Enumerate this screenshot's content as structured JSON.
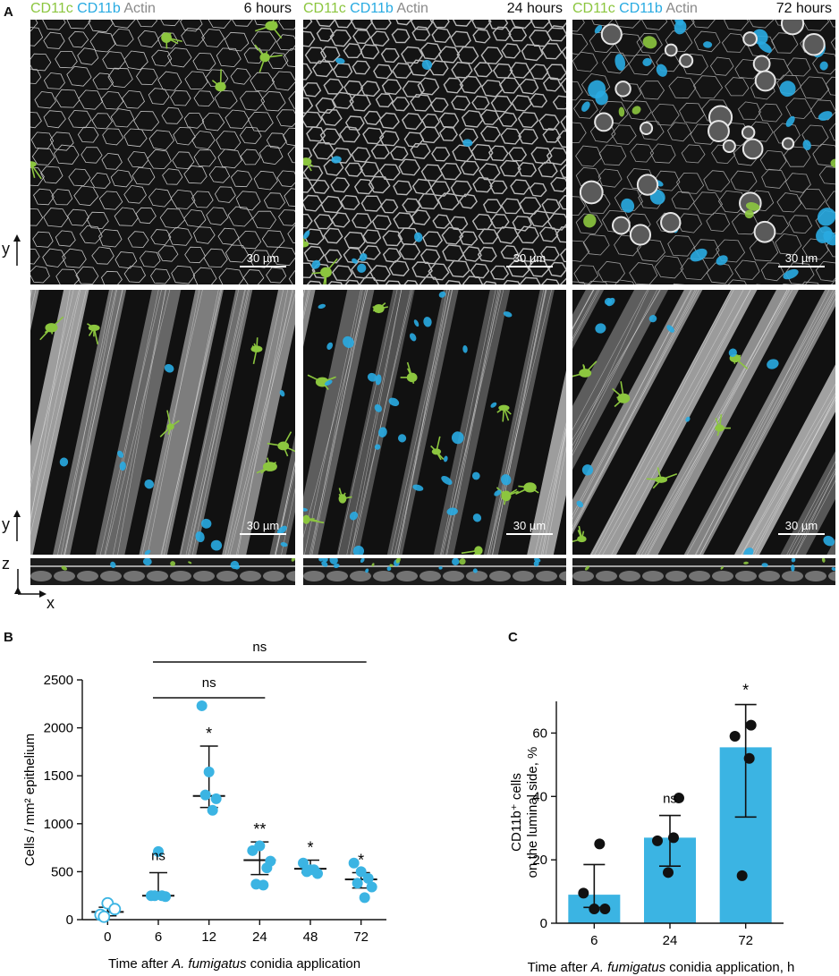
{
  "panel_a": {
    "letter": "A",
    "headers": [
      {
        "c1": "CD11c",
        "c2": "CD11b",
        "c3": "Actin",
        "time": "6 hours"
      },
      {
        "c1": "CD11c",
        "c2": "CD11b",
        "c3": "Actin",
        "time": "24 hours"
      },
      {
        "c1": "CD11c",
        "c2": "CD11b",
        "c3": "Actin",
        "time": "72 hours"
      }
    ],
    "scale_bar": "30 µm",
    "axis_y": "y",
    "axis_z": "z",
    "axis_x": "x",
    "colors": {
      "cd11c": "#8cc63f",
      "cd11b": "#29abe2",
      "actin": "#9a9a9a"
    }
  },
  "panel_b": {
    "letter": "B",
    "ylabel": "Cells / mm² epithelium",
    "xlabel_pre": "Time after ",
    "xlabel_italic": "A. fumigatus",
    "xlabel_post": " conidia application",
    "sig_brackets": [
      {
        "from": "6",
        "to": "72",
        "label": "ns"
      },
      {
        "from": "6",
        "to": "24",
        "label": "ns"
      }
    ],
    "chart_data": {
      "type": "scatter",
      "categories": [
        "0",
        "6",
        "12",
        "24",
        "48",
        "72"
      ],
      "ylim": [
        0,
        2500
      ],
      "yticks": [
        0,
        500,
        1000,
        1500,
        2000,
        2500
      ],
      "points": [
        [
          50,
          170,
          110,
          30
        ],
        [
          250,
          710,
          240,
          250,
          250
        ],
        [
          2230,
          1540,
          1260,
          1300,
          1140
        ],
        [
          720,
          770,
          540,
          370,
          360,
          610
        ],
        [
          590,
          520,
          480,
          500,
          520
        ],
        [
          590,
          500,
          430,
          380,
          230,
          340
        ]
      ],
      "median": [
        80,
        250,
        1290,
        620,
        530,
        420
      ],
      "upper": [
        130,
        490,
        1810,
        810,
        620,
        490
      ],
      "lower": [
        40,
        230,
        1170,
        470,
        490,
        330
      ],
      "open_marker_categories": [
        "0"
      ],
      "annotations": [
        "",
        "ns",
        "*",
        "**",
        "*",
        "*"
      ],
      "color": "#3bb4e3"
    }
  },
  "panel_c": {
    "letter": "C",
    "ylabel_line1": "CD11b⁺ cells",
    "ylabel_line2": "on the luminal side, %",
    "xlabel_pre": "Time after ",
    "xlabel_italic": "A. fumigatus",
    "xlabel_post": " conidia application, h",
    "chart_data": {
      "type": "bar",
      "categories": [
        "6",
        "24",
        "72"
      ],
      "values": [
        9,
        27,
        55.5
      ],
      "upper": [
        18.5,
        34,
        69
      ],
      "lower": [
        5,
        18,
        33.5
      ],
      "points": [
        [
          25,
          9.5,
          4.5,
          4.5
        ],
        [
          39.5,
          27,
          26,
          16
        ],
        [
          62.5,
          59,
          52,
          15
        ]
      ],
      "ylim": [
        0,
        70
      ],
      "yticks": [
        0,
        20,
        40,
        60
      ],
      "annotations": [
        "",
        "ns",
        "*"
      ],
      "bar_color": "#3bb4e3",
      "point_color": "#111111"
    }
  }
}
